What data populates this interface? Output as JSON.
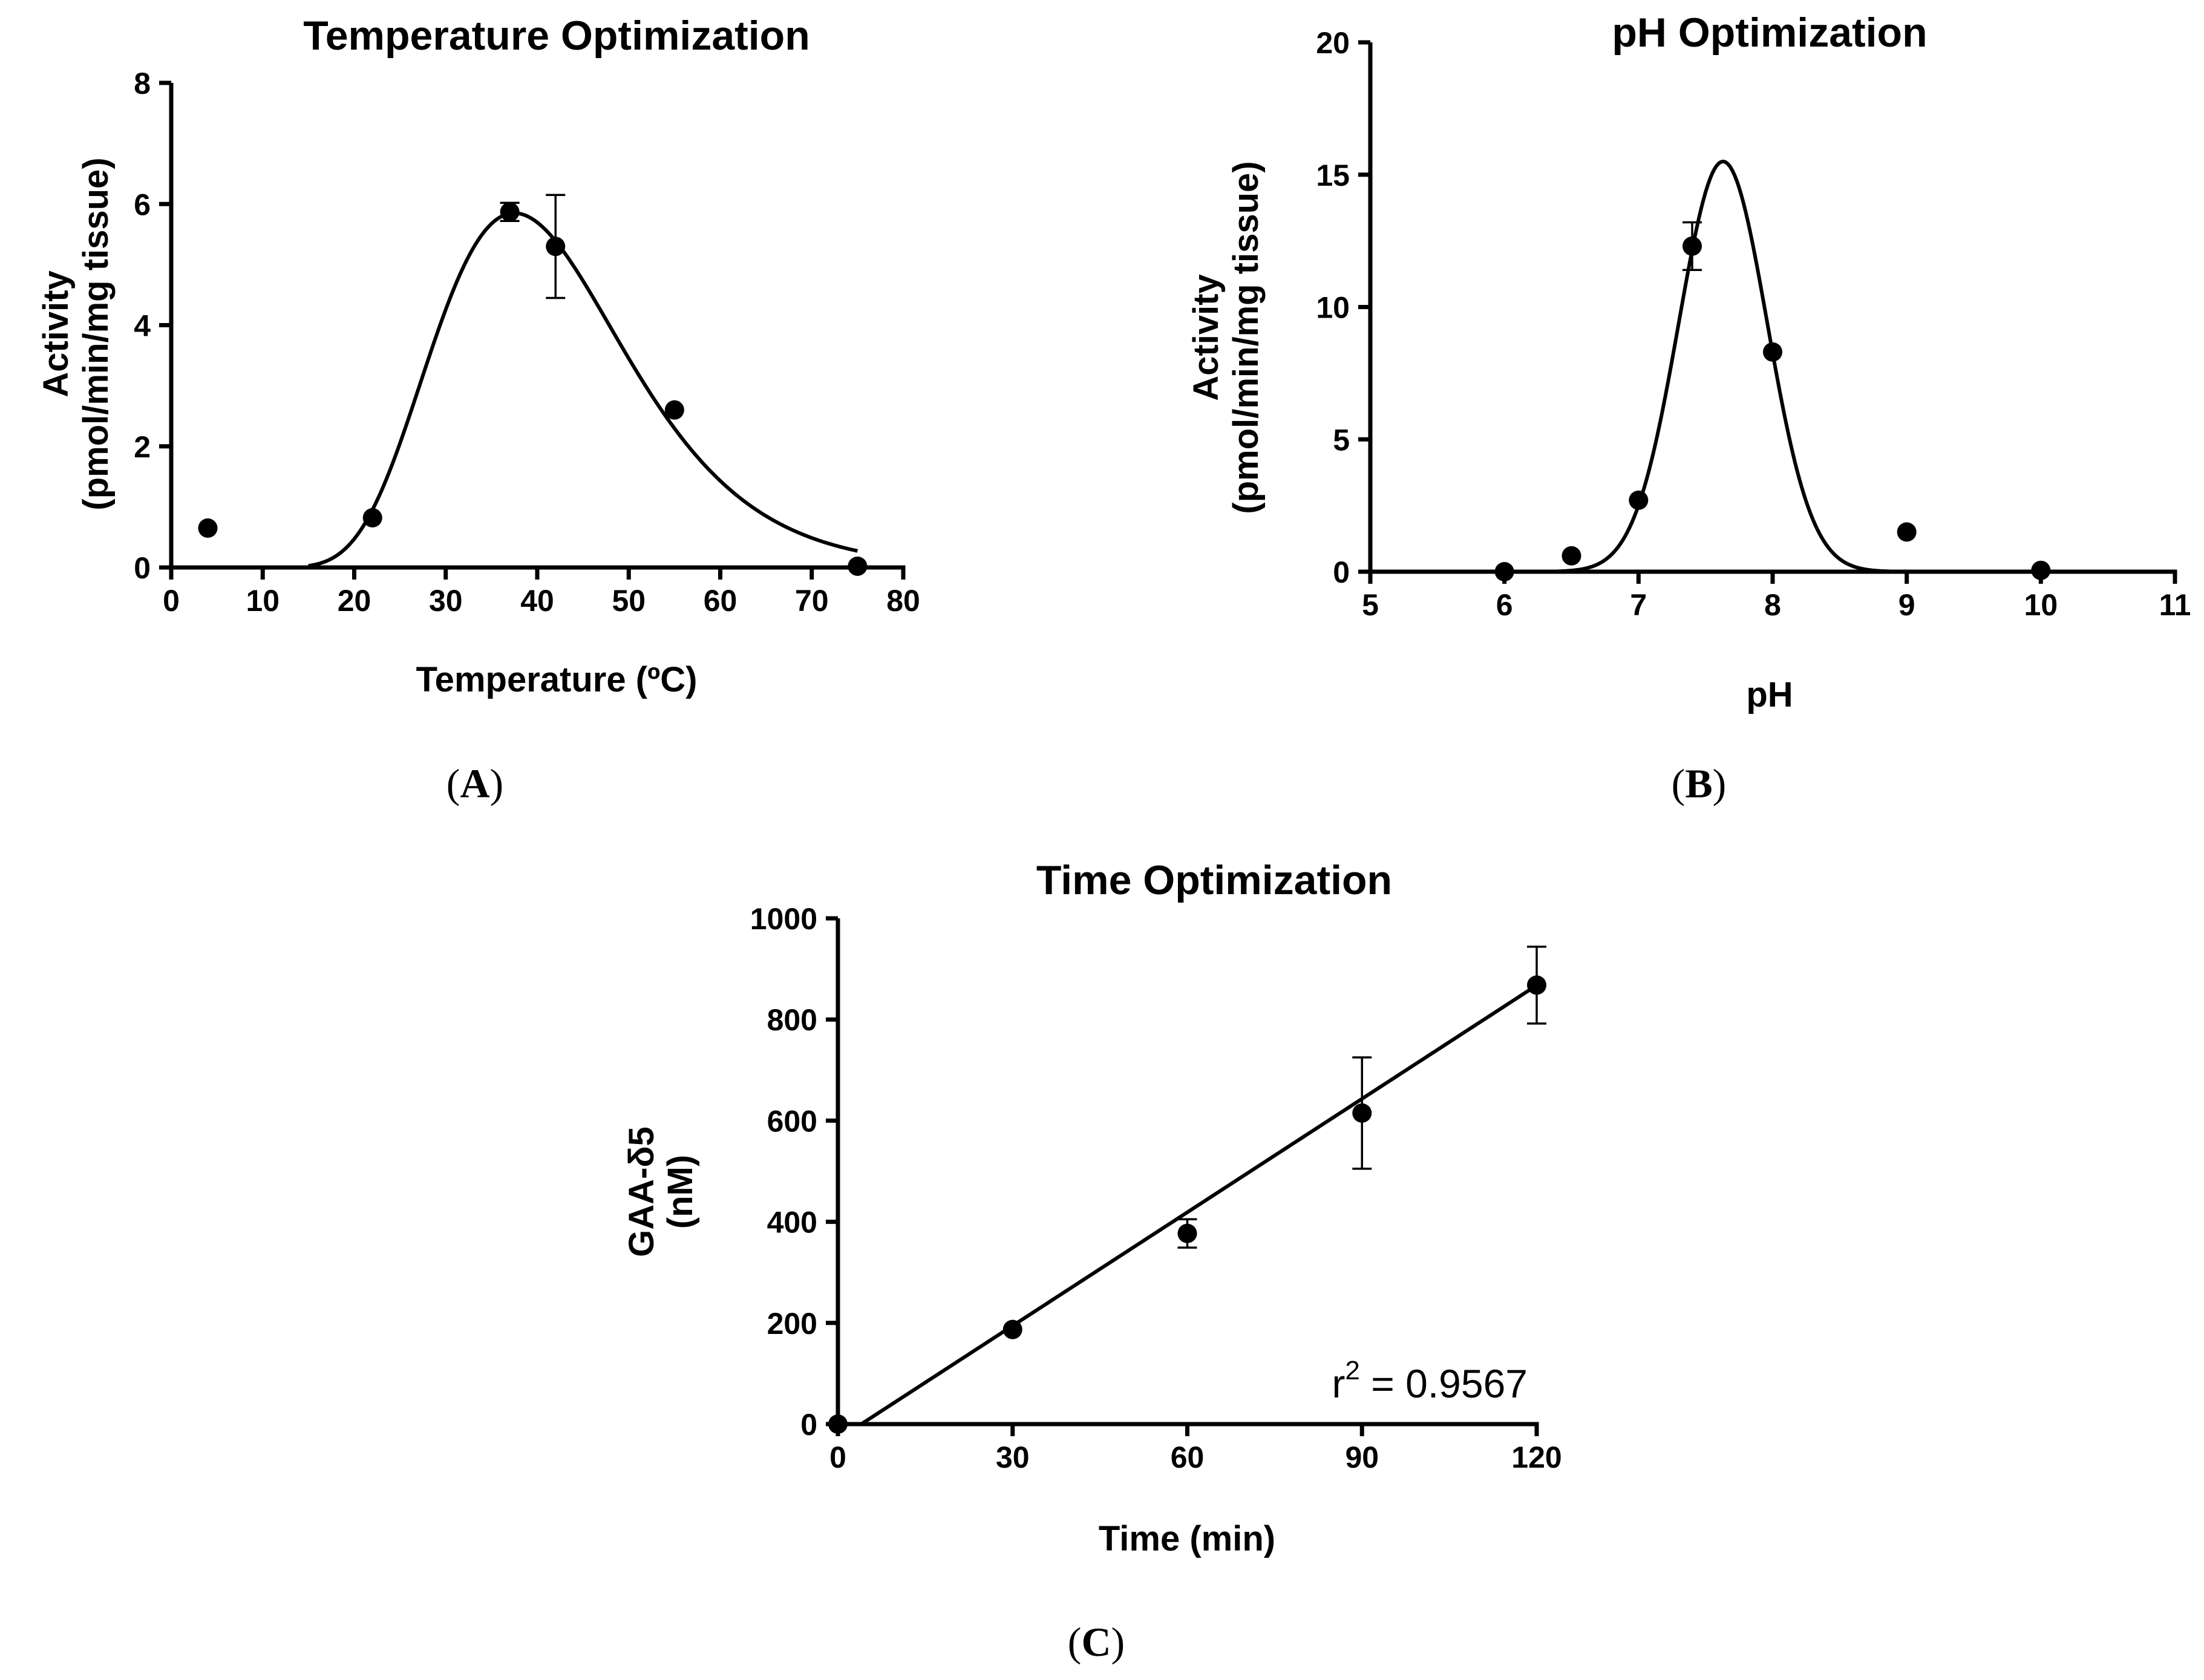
{
  "chart_data": [
    {
      "panel": "A",
      "type": "scatter",
      "title": "Temperature Optimization",
      "xlabel": "Temperature (ºC)",
      "ylabel_line1": "Activity",
      "ylabel_line2": "(pmol/min/mg tissue)",
      "xlim": [
        0,
        80
      ],
      "ylim": [
        0,
        8
      ],
      "xticks": [
        0,
        10,
        20,
        30,
        40,
        50,
        60,
        70,
        80
      ],
      "yticks": [
        0,
        2,
        4,
        6,
        8
      ],
      "points": [
        {
          "x": 4,
          "y": 0.65,
          "err": 0
        },
        {
          "x": 22,
          "y": 0.82,
          "err": 0
        },
        {
          "x": 37,
          "y": 5.87,
          "err": 0.15
        },
        {
          "x": 42,
          "y": 5.3,
          "err": 0.85
        },
        {
          "x": 55,
          "y": 2.6,
          "err": 0
        },
        {
          "x": 75,
          "y": 0.02,
          "err": 0
        }
      ],
      "fit": {
        "kind": "lognormal",
        "amplitude": 5.85,
        "center": 37.5,
        "width": 0.28,
        "x_from": 15,
        "x_to": 75
      }
    },
    {
      "panel": "B",
      "type": "scatter",
      "title": "pH Optimization",
      "xlabel": "pH",
      "ylabel_line1": "Activity",
      "ylabel_line2": "(pmol/min/mg tissue)",
      "xlim": [
        5,
        11
      ],
      "ylim": [
        0,
        20
      ],
      "xticks": [
        5,
        6,
        7,
        8,
        9,
        10,
        11
      ],
      "yticks": [
        0,
        5,
        10,
        15,
        20
      ],
      "points": [
        {
          "x": 6,
          "y": 0.0,
          "err": 0
        },
        {
          "x": 6.5,
          "y": 0.6,
          "err": 0
        },
        {
          "x": 7,
          "y": 2.7,
          "err": 0
        },
        {
          "x": 7.4,
          "y": 12.3,
          "err": 0.9
        },
        {
          "x": 8,
          "y": 8.3,
          "err": 0
        },
        {
          "x": 9,
          "y": 1.5,
          "err": 0
        },
        {
          "x": 10,
          "y": 0.05,
          "err": 0
        }
      ],
      "fit": {
        "kind": "gaussian",
        "amplitude": 15.5,
        "center": 7.63,
        "width": 0.33,
        "x_from": 6.0,
        "x_to": 10.0
      }
    },
    {
      "panel": "C",
      "type": "scatter",
      "title": "Time Optimization",
      "xlabel": "Time (min)",
      "ylabel_line1": "GAA-δ5",
      "ylabel_line2": "(nM)",
      "xlim": [
        0,
        120
      ],
      "ylim": [
        0,
        1000
      ],
      "xticks": [
        0,
        30,
        60,
        90,
        120
      ],
      "yticks": [
        0,
        200,
        400,
        600,
        800,
        1000
      ],
      "points": [
        {
          "x": 0,
          "y": 0,
          "err": 0
        },
        {
          "x": 30,
          "y": 187,
          "err": 0
        },
        {
          "x": 60,
          "y": 377,
          "err": 28
        },
        {
          "x": 90,
          "y": 615,
          "err": 110
        },
        {
          "x": 120,
          "y": 868,
          "err": 76
        }
      ],
      "fit": {
        "kind": "linear",
        "slope": 7.48,
        "intercept": -30,
        "x_from": 4,
        "x_to": 120
      },
      "annotation": {
        "text": "r",
        "superscript": "2",
        "rest": " = 0.9567"
      }
    }
  ],
  "panel_labels": {
    "A": "A",
    "B": "B",
    "C": "C"
  }
}
